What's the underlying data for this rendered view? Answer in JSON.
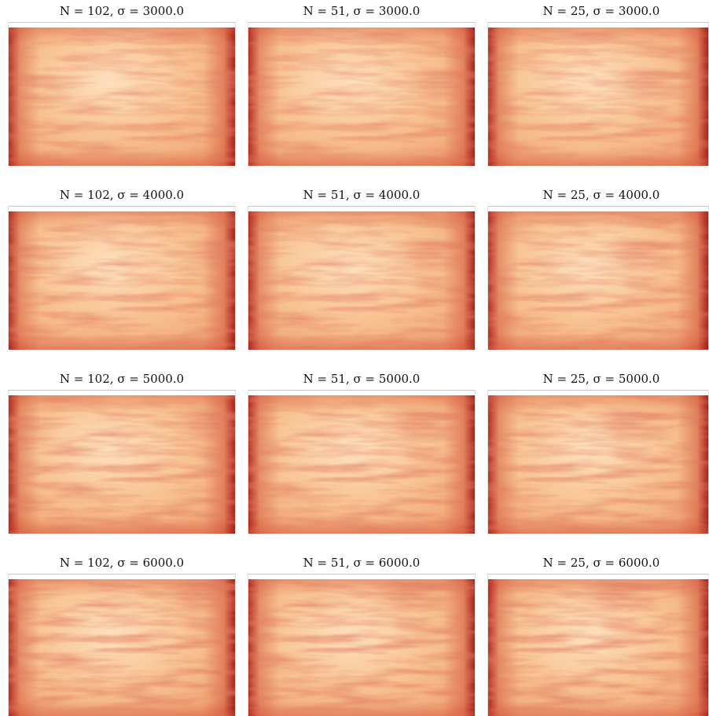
{
  "panels": [
    {
      "title": "N = 102, σ = 3000.0"
    },
    {
      "title": "N = 51, σ = 3000.0"
    },
    {
      "title": "N = 25, σ = 3000.0"
    },
    {
      "title": "N = 102, σ = 4000.0"
    },
    {
      "title": "N = 51, σ = 4000.0"
    },
    {
      "title": "N = 25, σ = 4000.0"
    },
    {
      "title": "N = 102, σ = 5000.0"
    },
    {
      "title": "N = 51, σ = 5000.0"
    },
    {
      "title": "N = 25, σ = 5000.0"
    },
    {
      "title": "N = 102, σ = 6000.0"
    },
    {
      "title": "N = 51, σ = 6000.0"
    },
    {
      "title": "N = 25, σ = 6000.0"
    }
  ]
}
